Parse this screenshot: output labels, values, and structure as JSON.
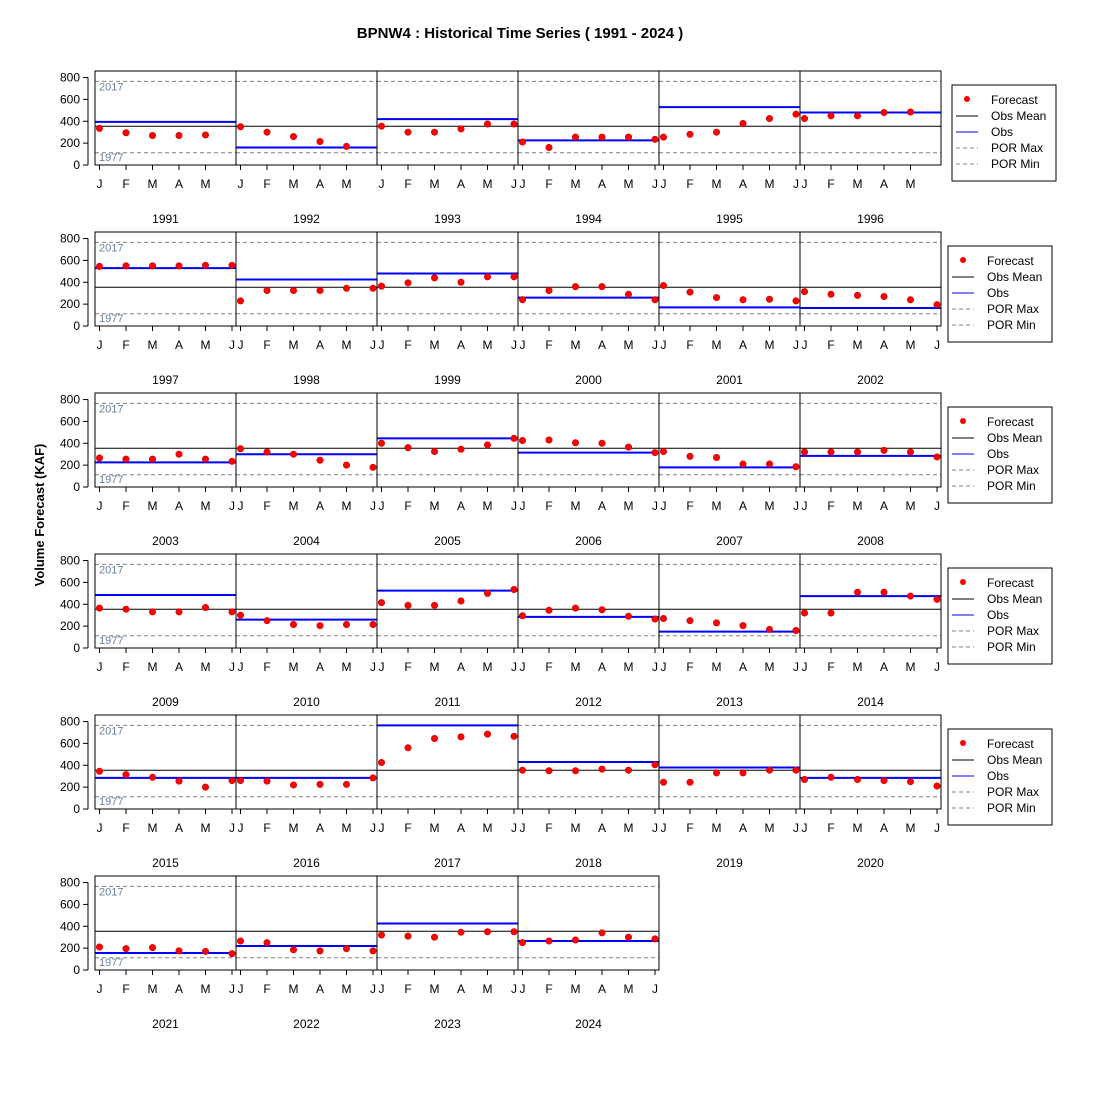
{
  "chart_data": {
    "type": "scatter",
    "title": "BPNW4 : Historical Time Series ( 1991 - 2024 )",
    "ylabel": "Volume Forecast (KAF)",
    "ylim": [
      0,
      860
    ],
    "yticks": [
      0,
      200,
      400,
      600,
      800
    ],
    "obs_mean": 355,
    "por_max": {
      "value": 765,
      "label": "2017"
    },
    "por_min": {
      "value": 112,
      "label": "1977"
    },
    "colors": {
      "forecast": "#ff0000",
      "obs": "#0000ff",
      "obs_mean": "#000000",
      "por": "#808080"
    },
    "legend": {
      "placement": "right",
      "entries": [
        "Forecast",
        "Obs Mean",
        "Obs",
        "POR Max",
        "POR Min"
      ]
    },
    "panels": [
      {
        "year": "1991",
        "months": [
          "J",
          "F",
          "M",
          "A",
          "M"
        ],
        "forecast": [
          335,
          295,
          270,
          270,
          275
        ],
        "obs": 395
      },
      {
        "year": "1992",
        "months": [
          "J",
          "F",
          "M",
          "A",
          "M"
        ],
        "forecast": [
          350,
          300,
          260,
          215,
          170
        ],
        "obs": 160
      },
      {
        "year": "1993",
        "months": [
          "J",
          "F",
          "M",
          "A",
          "M",
          "J"
        ],
        "forecast": [
          355,
          300,
          300,
          330,
          375,
          375
        ],
        "obs": 420
      },
      {
        "year": "1994",
        "months": [
          "J",
          "F",
          "M",
          "A",
          "M",
          "J"
        ],
        "forecast": [
          210,
          160,
          255,
          255,
          255,
          235
        ],
        "obs": 225
      },
      {
        "year": "1995",
        "months": [
          "J",
          "F",
          "M",
          "A",
          "M",
          "J"
        ],
        "forecast": [
          255,
          280,
          300,
          380,
          425,
          465
        ],
        "obs": 530
      },
      {
        "year": "1996",
        "months": [
          "J",
          "F",
          "M",
          "A",
          "M"
        ],
        "forecast": [
          425,
          450,
          450,
          480,
          485
        ],
        "obs": 480
      },
      {
        "year": "1997",
        "months": [
          "J",
          "F",
          "M",
          "A",
          "M",
          "J"
        ],
        "forecast": [
          545,
          550,
          550,
          550,
          555,
          555
        ],
        "obs": 530
      },
      {
        "year": "1998",
        "months": [
          "J",
          "F",
          "M",
          "A",
          "M",
          "J"
        ],
        "forecast": [
          230,
          325,
          325,
          325,
          345,
          345
        ],
        "obs": 425
      },
      {
        "year": "1999",
        "months": [
          "J",
          "F",
          "M",
          "A",
          "M",
          "J"
        ],
        "forecast": [
          365,
          395,
          440,
          400,
          450,
          450
        ],
        "obs": 480
      },
      {
        "year": "2000",
        "months": [
          "J",
          "F",
          "M",
          "A",
          "M",
          "J"
        ],
        "forecast": [
          240,
          325,
          360,
          360,
          290,
          240
        ],
        "obs": 260
      },
      {
        "year": "2001",
        "months": [
          "J",
          "F",
          "M",
          "A",
          "M",
          "J"
        ],
        "forecast": [
          370,
          310,
          260,
          240,
          245,
          230
        ],
        "obs": 170
      },
      {
        "year": "2002",
        "months": [
          "J",
          "F",
          "M",
          "A",
          "M",
          "J"
        ],
        "forecast": [
          315,
          290,
          280,
          270,
          240,
          195
        ],
        "obs": 165
      },
      {
        "year": "2003",
        "months": [
          "J",
          "F",
          "M",
          "A",
          "M",
          "J"
        ],
        "forecast": [
          265,
          255,
          255,
          300,
          255,
          235
        ],
        "obs": 225
      },
      {
        "year": "2004",
        "months": [
          "J",
          "F",
          "M",
          "A",
          "M",
          "J"
        ],
        "forecast": [
          350,
          320,
          300,
          245,
          200,
          180
        ],
        "obs": 300
      },
      {
        "year": "2005",
        "months": [
          "J",
          "F",
          "M",
          "A",
          "M",
          "J"
        ],
        "forecast": [
          400,
          360,
          325,
          345,
          385,
          445
        ],
        "obs": 445
      },
      {
        "year": "2006",
        "months": [
          "J",
          "F",
          "M",
          "A",
          "M",
          "J"
        ],
        "forecast": [
          425,
          430,
          405,
          400,
          365,
          315
        ],
        "obs": 315
      },
      {
        "year": "2007",
        "months": [
          "J",
          "F",
          "M",
          "A",
          "M",
          "J"
        ],
        "forecast": [
          325,
          280,
          270,
          210,
          210,
          185
        ],
        "obs": 180
      },
      {
        "year": "2008",
        "months": [
          "J",
          "F",
          "M",
          "A",
          "M",
          "J"
        ],
        "forecast": [
          320,
          320,
          320,
          335,
          320,
          275
        ],
        "obs": 285
      },
      {
        "year": "2009",
        "months": [
          "J",
          "F",
          "M",
          "A",
          "M",
          "J"
        ],
        "forecast": [
          365,
          355,
          330,
          330,
          370,
          330
        ],
        "obs": 485
      },
      {
        "year": "2010",
        "months": [
          "J",
          "F",
          "M",
          "A",
          "M",
          "J"
        ],
        "forecast": [
          300,
          250,
          215,
          205,
          215,
          215
        ],
        "obs": 260
      },
      {
        "year": "2011",
        "months": [
          "J",
          "F",
          "M",
          "A",
          "M",
          "J"
        ],
        "forecast": [
          415,
          390,
          390,
          430,
          500,
          535
        ],
        "obs": 525
      },
      {
        "year": "2012",
        "months": [
          "J",
          "F",
          "M",
          "A",
          "M",
          "J"
        ],
        "forecast": [
          295,
          345,
          365,
          350,
          290,
          265
        ],
        "obs": 285
      },
      {
        "year": "2013",
        "months": [
          "J",
          "F",
          "M",
          "A",
          "M",
          "J"
        ],
        "forecast": [
          270,
          250,
          230,
          205,
          170,
          160
        ],
        "obs": 150
      },
      {
        "year": "2014",
        "months": [
          "J",
          "F",
          "M",
          "A",
          "M",
          "J"
        ],
        "forecast": [
          320,
          320,
          510,
          510,
          475,
          445
        ],
        "obs": 475
      },
      {
        "year": "2015",
        "months": [
          "J",
          "F",
          "M",
          "A",
          "M",
          "J"
        ],
        "forecast": [
          345,
          315,
          290,
          255,
          200,
          260
        ],
        "obs": 285
      },
      {
        "year": "2016",
        "months": [
          "J",
          "F",
          "M",
          "A",
          "M",
          "J"
        ],
        "forecast": [
          260,
          255,
          220,
          225,
          225,
          285
        ],
        "obs": 285
      },
      {
        "year": "2017",
        "months": [
          "J",
          "F",
          "M",
          "A",
          "M",
          "J"
        ],
        "forecast": [
          425,
          560,
          645,
          660,
          685,
          665
        ],
        "obs": 765
      },
      {
        "year": "2018",
        "months": [
          "J",
          "F",
          "M",
          "A",
          "M",
          "J"
        ],
        "forecast": [
          355,
          350,
          350,
          365,
          355,
          405
        ],
        "obs": 430
      },
      {
        "year": "2019",
        "months": [
          "J",
          "F",
          "M",
          "A",
          "M",
          "J"
        ],
        "forecast": [
          245,
          245,
          330,
          330,
          355,
          355
        ],
        "obs": 380
      },
      {
        "year": "2020",
        "months": [
          "J",
          "F",
          "M",
          "A",
          "M",
          "J"
        ],
        "forecast": [
          270,
          290,
          270,
          260,
          250,
          210
        ],
        "obs": 285
      },
      {
        "year": "2021",
        "months": [
          "J",
          "F",
          "M",
          "A",
          "M",
          "J"
        ],
        "forecast": [
          210,
          195,
          205,
          175,
          170,
          150
        ],
        "obs": 155
      },
      {
        "year": "2022",
        "months": [
          "J",
          "F",
          "M",
          "A",
          "M",
          "J"
        ],
        "forecast": [
          265,
          250,
          185,
          175,
          195,
          175
        ],
        "obs": 220
      },
      {
        "year": "2023",
        "months": [
          "J",
          "F",
          "M",
          "A",
          "M",
          "J"
        ],
        "forecast": [
          320,
          310,
          300,
          345,
          350,
          350
        ],
        "obs": 425
      },
      {
        "year": "2024",
        "months": [
          "J",
          "F",
          "M",
          "A",
          "M",
          "J"
        ],
        "forecast": [
          250,
          265,
          275,
          340,
          300,
          285
        ],
        "obs": 265
      }
    ]
  }
}
